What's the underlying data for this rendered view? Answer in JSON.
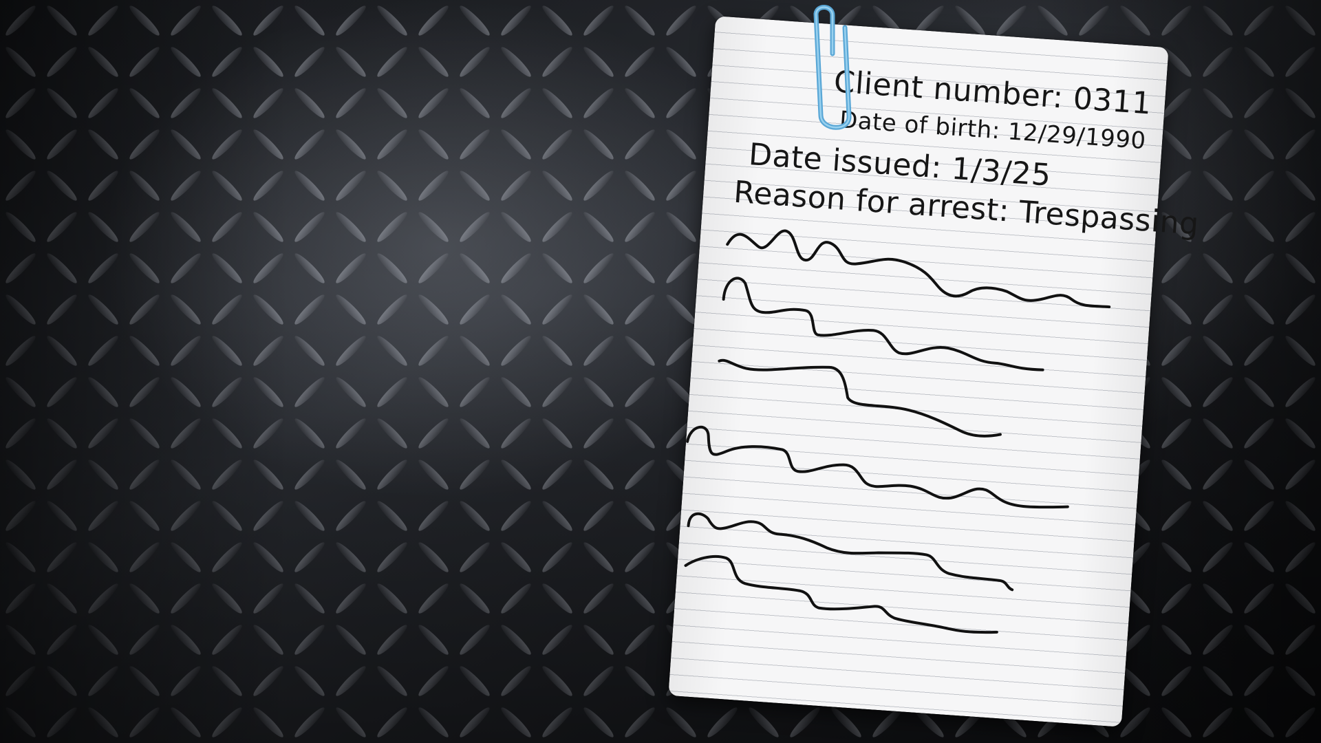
{
  "note": {
    "client_number": "Client number: 0311",
    "date_of_birth": "Date of birth: 12/29/1990",
    "date_issued": "Date issued: 1/3/25",
    "reason_for_arrest": "Reason for arrest: Trespassing"
  },
  "colors": {
    "paper": "#f6f6f7",
    "ink": "#161616",
    "paperclip": "#6fb6e0",
    "background": "#0b0c0e"
  },
  "icons": {
    "paperclip": "paperclip-icon"
  }
}
